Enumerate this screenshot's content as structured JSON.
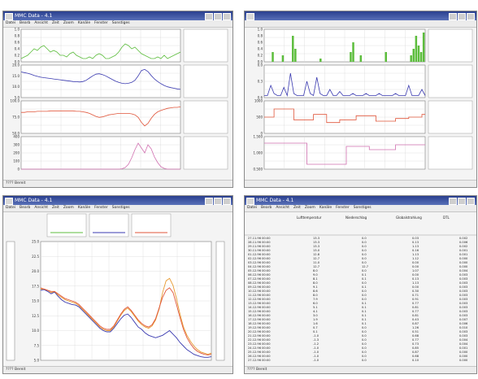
{
  "windows": {
    "tl": {
      "title": "MMC Data - 4.1",
      "menu": [
        "Datei",
        "Bearb",
        "Ansicht",
        "Zeit",
        "Zoom",
        "Kanäle",
        "Fenster",
        "Sonstiges"
      ],
      "status": "???? Bereit"
    },
    "tr": {
      "title": "",
      "menu": []
    },
    "bl": {
      "title": "MMC Data - 4.1",
      "menu": [
        "Datei",
        "Bearb",
        "Ansicht",
        "Zeit",
        "Zoom",
        "Kanäle",
        "Fenster",
        "Sonstiges"
      ],
      "status": "???? Bereit"
    },
    "br": {
      "title": "MMC Data - 4.1",
      "menu": [
        "Datei",
        "Bearb",
        "Ansicht",
        "Zeit",
        "Zoom",
        "Kanäle",
        "Fenster",
        "Sonstiges"
      ],
      "status": "???? Bereit"
    }
  },
  "colors": {
    "green": "#5cbd3c",
    "blue": "#3a3ab0",
    "red": "#e0553a",
    "pink": "#d070b0",
    "orange": "#e89a30",
    "grid": "#d8d8d8",
    "titlebar": "#2a3f8f"
  },
  "chart_data": [
    {
      "id": "tl-1",
      "type": "line",
      "ytick_labels": [
        "1.0",
        "0.8",
        "0.6",
        "0.4",
        "0.2",
        "0.0"
      ],
      "ylim": [
        0,
        1.0
      ],
      "color": "green",
      "y": [
        0.1,
        0.15,
        0.2,
        0.3,
        0.4,
        0.35,
        0.45,
        0.5,
        0.4,
        0.3,
        0.35,
        0.3,
        0.2,
        0.2,
        0.15,
        0.25,
        0.3,
        0.2,
        0.15,
        0.1,
        0.1,
        0.15,
        0.1,
        0.2,
        0.25,
        0.2,
        0.1,
        0.1,
        0.15,
        0.2,
        0.3,
        0.45,
        0.55,
        0.5,
        0.4,
        0.45,
        0.35,
        0.25,
        0.2,
        0.15,
        0.1,
        0.1,
        0.15,
        0.1,
        0.2,
        0.1,
        0.15,
        0.2,
        0.25,
        0.3
      ]
    },
    {
      "id": "tl-2",
      "type": "line",
      "ytick_labels": [
        "20.0",
        "15.0",
        "10.0",
        "5.0"
      ],
      "ylim": [
        5,
        20
      ],
      "color": "blue",
      "y": [
        16.8,
        16.5,
        16.2,
        15.8,
        15.2,
        14.8,
        14.4,
        14.2,
        14.0,
        13.8,
        13.6,
        13.4,
        13.2,
        13.0,
        12.8,
        12.6,
        12.4,
        12.3,
        12.2,
        12.4,
        13.0,
        14.0,
        15.0,
        15.8,
        16.0,
        15.6,
        15.0,
        14.2,
        13.4,
        12.6,
        12.0,
        11.6,
        11.4,
        11.6,
        12.0,
        13.0,
        15.0,
        17.5,
        18.0,
        17.0,
        15.2,
        13.6,
        12.4,
        11.4,
        10.6,
        10.0,
        9.6,
        9.3,
        9.0,
        8.8
      ]
    },
    {
      "id": "tl-3",
      "type": "line",
      "ytick_labels": [
        "100.0",
        "75.0",
        "50.0"
      ],
      "ylim": [
        40,
        105
      ],
      "color": "red",
      "y": [
        82,
        82,
        83,
        83,
        83,
        84,
        84,
        84,
        84,
        85,
        85,
        85,
        85,
        85,
        85,
        85,
        85,
        84,
        84,
        83,
        82,
        80,
        77,
        74,
        72,
        73,
        75,
        77,
        78,
        79,
        80,
        80,
        80,
        80,
        79,
        77,
        72,
        62,
        55,
        60,
        70,
        78,
        83,
        86,
        88,
        90,
        91,
        92,
        92,
        93
      ]
    },
    {
      "id": "tl-4",
      "type": "line",
      "ytick_labels": [
        "400",
        "300",
        "200",
        "100",
        "0"
      ],
      "ylim": [
        0,
        400
      ],
      "color": "pink",
      "y": [
        0,
        0,
        0,
        0,
        0,
        0,
        0,
        0,
        0,
        0,
        0,
        0,
        0,
        0,
        0,
        0,
        0,
        0,
        0,
        0,
        0,
        0,
        0,
        0,
        0,
        0,
        0,
        0,
        0,
        0,
        0,
        5,
        20,
        60,
        140,
        240,
        320,
        260,
        200,
        300,
        250,
        150,
        80,
        30,
        10,
        0,
        0,
        0,
        0,
        0
      ]
    },
    {
      "id": "tr-1",
      "type": "bar",
      "ytick_labels": [
        "1.0",
        "0.8",
        "0.6",
        "0.4",
        "0.2",
        "0.0"
      ],
      "ylim": [
        0,
        1.0
      ],
      "color": "green",
      "values": [
        0,
        0,
        0,
        0.3,
        0,
        0,
        0,
        0.2,
        0,
        0,
        0,
        0.8,
        0.4,
        0,
        0,
        0,
        0,
        0,
        0,
        0,
        0,
        0,
        0.1,
        0,
        0,
        0,
        0,
        0,
        0,
        0,
        0,
        0,
        0,
        0,
        0.3,
        0.6,
        0,
        0,
        0.2,
        0,
        0,
        0,
        0,
        0,
        0,
        0,
        0,
        0,
        0.3,
        0,
        0,
        0,
        0,
        0,
        0,
        0,
        0,
        0,
        0.2,
        0.4,
        0.8,
        0.5,
        0.3,
        0.9
      ]
    },
    {
      "id": "tr-2",
      "type": "line",
      "ytick_labels": [
        "0.0",
        "0.3",
        "0.6"
      ],
      "ylim": [
        0,
        0.8
      ],
      "color": "blue",
      "y": [
        0.05,
        0.05,
        0.3,
        0.1,
        0.05,
        0.05,
        0.25,
        0.05,
        0.6,
        0.1,
        0.05,
        0.05,
        0.05,
        0.4,
        0.1,
        0.05,
        0.5,
        0.1,
        0.05,
        0.05,
        0.2,
        0.05,
        0.05,
        0.15,
        0.05,
        0.05,
        0.05,
        0.1,
        0.05,
        0.05,
        0.05,
        0.1,
        0.05,
        0.05,
        0.05,
        0.1,
        0.05,
        0.05,
        0.05,
        0.05,
        0.1,
        0.05,
        0.05,
        0.05,
        0.3,
        0.05,
        0.05,
        0.05,
        0.2,
        0.05
      ]
    },
    {
      "id": "tr-3",
      "type": "line",
      "step": true,
      "ytick_labels": [
        "1000",
        "500",
        "0"
      ],
      "ylim": [
        0,
        1200
      ],
      "color": "red",
      "y": [
        600,
        600,
        600,
        900,
        900,
        900,
        900,
        900,
        900,
        500,
        500,
        500,
        500,
        500,
        500,
        700,
        700,
        700,
        700,
        400,
        400,
        400,
        400,
        500,
        500,
        500,
        500,
        500,
        650,
        650,
        650,
        650,
        650,
        650,
        450,
        450,
        450,
        450,
        450,
        450,
        550,
        550,
        550,
        550,
        600,
        600,
        600,
        600,
        700,
        700
      ]
    },
    {
      "id": "tr-4",
      "type": "line",
      "step": true,
      "ytick_labels": [
        "1.500",
        "1.000",
        "0.500"
      ],
      "ylim": [
        0,
        2
      ],
      "color": "pink",
      "y": [
        1.6,
        1.6,
        1.6,
        1.6,
        1.6,
        1.6,
        1.6,
        1.6,
        1.6,
        1.6,
        1.6,
        1.6,
        1.6,
        0.3,
        0.3,
        0.3,
        0.3,
        0.3,
        0.3,
        0.3,
        0.3,
        0.3,
        0.3,
        0.3,
        0.3,
        1.4,
        1.4,
        1.4,
        1.4,
        1.4,
        1.4,
        1.4,
        1.2,
        1.2,
        1.2,
        1.2,
        1.2,
        1.2,
        1.2,
        1.2,
        1.5,
        1.5,
        1.5,
        1.5,
        1.5,
        1.5,
        1.5,
        1.5,
        1.5,
        1.5
      ]
    },
    {
      "id": "bl-main",
      "type": "line",
      "ytick_labels": [
        "25.0",
        "22.5",
        "20.0",
        "17.5",
        "15.0",
        "12.5",
        "10.0",
        "7.5",
        "5.0"
      ],
      "ylim": [
        5,
        25
      ],
      "series": [
        {
          "color": "blue",
          "y": [
            16.8,
            16.9,
            16.6,
            16.2,
            16.5,
            15.8,
            15.2,
            14.8,
            14.6,
            14.4,
            14.3,
            14.0,
            13.4,
            12.8,
            12.2,
            11.6,
            11.0,
            10.4,
            10.0,
            9.8,
            9.8,
            10.4,
            11.2,
            12.0,
            12.6,
            12.8,
            12.2,
            11.4,
            10.6,
            10.2,
            9.6,
            9.2,
            9.0,
            8.8,
            9.0,
            9.2,
            9.6,
            10.0,
            9.4,
            8.8,
            8.0,
            7.4,
            6.8,
            6.4,
            6.0,
            5.8,
            5.6,
            5.5,
            5.5,
            5.6
          ]
        },
        {
          "color": "orange",
          "y": [
            17.0,
            17.0,
            16.8,
            16.4,
            16.6,
            16.0,
            15.6,
            15.2,
            15.0,
            14.8,
            14.6,
            14.2,
            13.6,
            13.0,
            12.4,
            11.8,
            11.2,
            10.6,
            10.2,
            10.0,
            10.0,
            10.6,
            11.6,
            12.6,
            13.4,
            13.8,
            13.2,
            12.4,
            11.6,
            11.0,
            10.6,
            10.4,
            10.8,
            11.8,
            13.6,
            16.4,
            18.4,
            18.8,
            17.6,
            15.4,
            12.8,
            10.6,
            9.2,
            8.2,
            7.4,
            6.8,
            6.4,
            6.2,
            6.0,
            6.2
          ]
        },
        {
          "color": "red",
          "y": [
            17.2,
            17.0,
            16.8,
            16.6,
            16.6,
            16.2,
            15.8,
            15.4,
            15.2,
            15.0,
            14.8,
            14.4,
            13.8,
            13.2,
            12.6,
            12.0,
            11.4,
            10.8,
            10.4,
            10.2,
            10.2,
            10.8,
            11.8,
            12.8,
            13.6,
            14.0,
            13.4,
            12.6,
            11.8,
            11.2,
            10.8,
            10.6,
            11.0,
            12.0,
            13.8,
            15.6,
            16.8,
            17.2,
            16.4,
            14.4,
            12.2,
            10.2,
            8.8,
            7.8,
            7.0,
            6.5,
            6.2,
            6.0,
            5.9,
            6.0
          ]
        }
      ]
    }
  ],
  "br_table": {
    "headers": [
      "",
      "Lufttemperatur",
      "Niederschlag",
      "Globalstrahlung",
      "DTL"
    ],
    "rows": [
      [
        "27.11.96 00:00",
        "13.3",
        "0.0",
        "0.03",
        "0.002"
      ],
      [
        "28.11.96 00:00",
        "13.3",
        "0.0",
        "0.13",
        "0.006"
      ],
      [
        "29.11.96 00:00",
        "13.3",
        "0.0",
        "1.13",
        "0.002"
      ],
      [
        "30.11.96 00:00",
        "13.0",
        "0.0",
        "0.16",
        "0.001"
      ],
      [
        "01.12.96 00:00",
        "12.8",
        "0.0",
        "1.13",
        "0.001"
      ],
      [
        "02.12.96 00:00",
        "12.7",
        "0.0",
        "1.12",
        "0.000"
      ],
      [
        "03.12.96 00:00",
        "11.0",
        "0.0",
        "0.00",
        "0.000"
      ],
      [
        "04.12.96 00:00",
        "12.7",
        "12.7",
        "0.00",
        "0.000"
      ],
      [
        "05.12.96 00:00",
        "8.0",
        "0.0",
        "1.07",
        "0.004"
      ],
      [
        "06.12.96 00:00",
        "9.0",
        "0.1",
        "0.00",
        "0.003"
      ],
      [
        "07.12.96 00:00",
        "8.1",
        "0.1",
        "0.13",
        "0.003"
      ],
      [
        "08.12.96 00:00",
        "8.0",
        "0.0",
        "1.13",
        "0.003"
      ],
      [
        "09.12.96 00:00",
        "9.1",
        "0.1",
        "0.00",
        "0.003"
      ],
      [
        "10.12.96 00:00",
        "8.6",
        "0.0",
        "0.30",
        "0.003"
      ],
      [
        "11.12.96 00:00",
        "8.0",
        "0.0",
        "0.71",
        "0.003"
      ],
      [
        "12.12.96 00:00",
        "7.9",
        "0.0",
        "0.91",
        "0.003"
      ],
      [
        "13.12.96 00:00",
        "6.0",
        "0.1",
        "0.77",
        "0.003"
      ],
      [
        "14.12.96 00:00",
        "5.1",
        "0.1",
        "0.81",
        "0.003"
      ],
      [
        "15.12.96 00:00",
        "4.1",
        "0.1",
        "0.77",
        "0.003"
      ],
      [
        "16.12.96 00:00",
        "3.0",
        "0.1",
        "0.81",
        "0.003"
      ],
      [
        "17.12.96 00:00",
        "1.9",
        "0.1",
        "0.43",
        "0.007"
      ],
      [
        "18.12.96 00:00",
        "1.6",
        "0.1",
        "0.87",
        "0.006"
      ],
      [
        "19.12.96 00:00",
        "0.7",
        "0.0",
        "1.26",
        "0.010"
      ],
      [
        "20.12.96 00:00",
        "0.1",
        "0.0",
        "0.51",
        "0.003"
      ],
      [
        "21.12.96 00:00",
        "-1.0",
        "0.0",
        "0.68",
        "0.003"
      ],
      [
        "22.12.96 00:00",
        "-1.3",
        "0.0",
        "0.77",
        "0.004"
      ],
      [
        "23.12.96 00:00",
        "-1.2",
        "0.0",
        "0.73",
        "0.004"
      ],
      [
        "24.12.96 00:00",
        "-1.0",
        "0.0",
        "0.85",
        "0.001"
      ],
      [
        "25.12.96 00:00",
        "-1.0",
        "0.0",
        "0.87",
        "0.000"
      ],
      [
        "26.12.96 00:00",
        "-1.0",
        "0.0",
        "0.68",
        "0.000"
      ],
      [
        "27.12.96 00:00",
        "-1.0",
        "0.0",
        "0.10",
        "0.000"
      ]
    ]
  }
}
